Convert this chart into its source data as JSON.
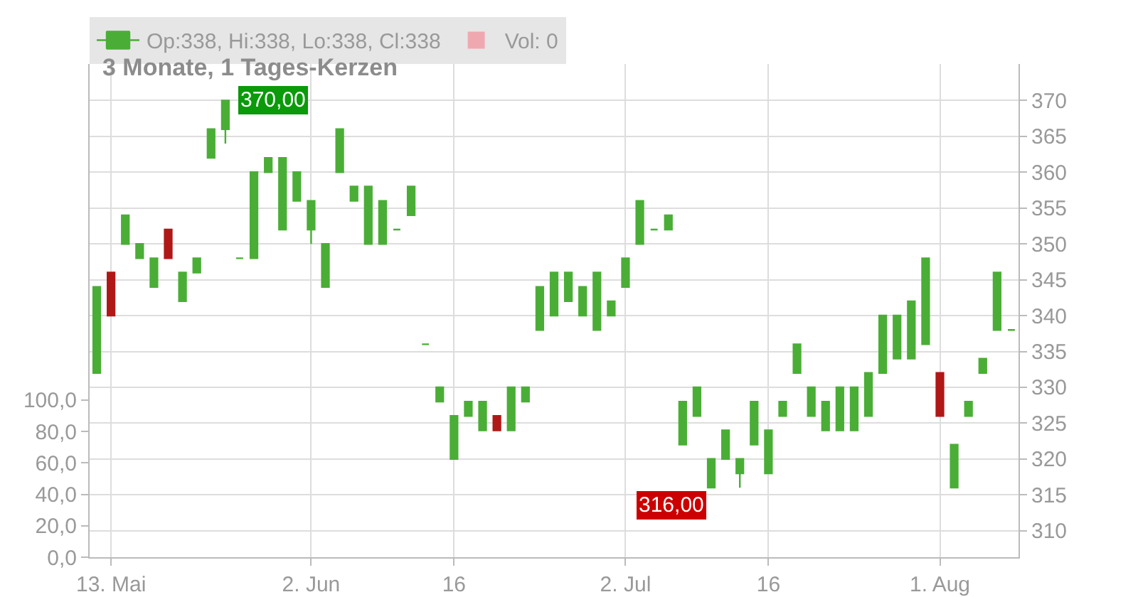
{
  "chart_data": {
    "type": "candlestick",
    "title": "3 Monate, 1 Tages-Kerzen",
    "categories": [
      null,
      "13. Mai",
      null,
      null,
      null,
      null,
      null,
      null,
      null,
      null,
      null,
      null,
      null,
      null,
      null,
      "2. Jun",
      null,
      null,
      null,
      null,
      null,
      null,
      null,
      null,
      null,
      "16",
      null,
      null,
      null,
      null,
      null,
      null,
      null,
      null,
      null,
      null,
      null,
      "2. Jul",
      null,
      null,
      null,
      null,
      null,
      null,
      null,
      null,
      null,
      "16",
      null,
      null,
      null,
      null,
      null,
      null,
      null,
      null,
      null,
      null,
      null,
      "1. Aug",
      null,
      null,
      null,
      null,
      null
    ],
    "series": [
      {
        "name": "Op:338, Hi:338, Lo:338, Cl:338",
        "color": "#4aae36",
        "ohlc": [
          [
            332,
            344,
            332,
            344
          ],
          [
            346,
            346,
            340,
            340
          ],
          [
            350,
            354,
            350,
            354
          ],
          [
            348,
            350,
            348,
            350
          ],
          [
            344,
            348,
            344,
            348
          ],
          [
            352,
            352,
            348,
            348
          ],
          [
            342,
            346,
            342,
            346
          ],
          [
            346,
            348,
            346,
            348
          ],
          [
            362,
            366,
            362,
            366
          ],
          [
            366,
            370,
            364,
            370
          ],
          [
            348,
            348,
            348,
            348
          ],
          [
            348,
            360,
            348,
            360
          ],
          [
            360,
            362,
            360,
            362
          ],
          [
            352,
            362,
            352,
            362
          ],
          [
            356,
            360,
            356,
            360
          ],
          [
            352,
            356,
            350,
            356
          ],
          [
            344,
            350,
            344,
            350
          ],
          [
            360,
            366,
            360,
            366
          ],
          [
            356,
            358,
            356,
            358
          ],
          [
            350,
            358,
            350,
            358
          ],
          [
            350,
            356,
            350,
            356
          ],
          [
            352,
            352,
            352,
            352
          ],
          [
            354,
            358,
            354,
            358
          ],
          [
            336,
            336,
            336,
            336
          ],
          [
            328,
            330,
            328,
            330
          ],
          [
            320,
            326,
            320,
            326
          ],
          [
            326,
            328,
            326,
            328
          ],
          [
            324,
            328,
            324,
            328
          ],
          [
            326,
            326,
            324,
            324
          ],
          [
            324,
            330,
            324,
            330
          ],
          [
            328,
            330,
            328,
            330
          ],
          [
            338,
            344,
            338,
            344
          ],
          [
            340,
            346,
            340,
            346
          ],
          [
            342,
            346,
            342,
            346
          ],
          [
            340,
            344,
            340,
            344
          ],
          [
            338,
            346,
            338,
            346
          ],
          [
            340,
            342,
            340,
            342
          ],
          [
            344,
            348,
            344,
            348
          ],
          [
            350,
            356,
            350,
            356
          ],
          [
            352,
            352,
            352,
            352
          ],
          [
            352,
            354,
            352,
            354
          ],
          [
            322,
            328,
            322,
            328
          ],
          [
            326,
            330,
            326,
            330
          ],
          [
            316,
            320,
            316,
            320
          ],
          [
            320,
            324,
            320,
            324
          ],
          [
            318,
            320,
            316,
            320
          ],
          [
            322,
            328,
            322,
            328
          ],
          [
            318,
            324,
            318,
            324
          ],
          [
            326,
            328,
            326,
            328
          ],
          [
            332,
            336,
            332,
            336
          ],
          [
            326,
            330,
            326,
            330
          ],
          [
            324,
            328,
            324,
            328
          ],
          [
            324,
            330,
            324,
            330
          ],
          [
            324,
            330,
            324,
            330
          ],
          [
            326,
            332,
            326,
            332
          ],
          [
            332,
            340,
            332,
            340
          ],
          [
            334,
            340,
            334,
            340
          ],
          [
            334,
            342,
            334,
            342
          ],
          [
            336,
            348,
            336,
            348
          ],
          [
            332,
            332,
            326,
            326
          ],
          [
            316,
            322,
            316,
            322
          ],
          [
            326,
            328,
            326,
            328
          ],
          [
            332,
            334,
            332,
            334
          ],
          [
            338,
            346,
            338,
            346
          ],
          [
            338,
            338,
            338,
            338
          ]
        ],
        "colors": [
          "#4aae36",
          "#b01818",
          "#4aae36",
          "#4aae36",
          "#4aae36",
          "#b01818",
          "#4aae36",
          "#4aae36",
          "#4aae36",
          "#4aae36",
          "#4aae36",
          "#4aae36",
          "#4aae36",
          "#4aae36",
          "#4aae36",
          "#4aae36",
          "#4aae36",
          "#4aae36",
          "#4aae36",
          "#4aae36",
          "#4aae36",
          "#4aae36",
          "#4aae36",
          "#4aae36",
          "#4aae36",
          "#4aae36",
          "#4aae36",
          "#4aae36",
          "#b01818",
          "#4aae36",
          "#4aae36",
          "#4aae36",
          "#4aae36",
          "#4aae36",
          "#4aae36",
          "#4aae36",
          "#4aae36",
          "#4aae36",
          "#4aae36",
          "#4aae36",
          "#4aae36",
          "#4aae36",
          "#4aae36",
          "#4aae36",
          "#4aae36",
          "#4aae36",
          "#4aae36",
          "#4aae36",
          "#4aae36",
          "#4aae36",
          "#4aae36",
          "#4aae36",
          "#4aae36",
          "#4aae36",
          "#4aae36",
          "#4aae36",
          "#4aae36",
          "#4aae36",
          "#4aae36",
          "#b01818",
          "#4aae36",
          "#4aae36",
          "#4aae36",
          "#4aae36",
          "#4aae36"
        ]
      },
      {
        "type": "bar",
        "name": "Vol: 0",
        "color": "#f0a8b0",
        "axis": "y2",
        "values": [
          0,
          0,
          0,
          0,
          0,
          0,
          0,
          0,
          0,
          0,
          0,
          0,
          0,
          0,
          0,
          0,
          0,
          0,
          0,
          0,
          0,
          0,
          0,
          0,
          0,
          0,
          0,
          0,
          0,
          0,
          0,
          0,
          0,
          0,
          0,
          0,
          0,
          0,
          0,
          0,
          0,
          0,
          0,
          0,
          0,
          0,
          0,
          0,
          0,
          0,
          0,
          0,
          0,
          0,
          0,
          0,
          0,
          0,
          0,
          0,
          0,
          0,
          0,
          0,
          0
        ]
      }
    ],
    "ylim": [
      306.3,
      375.1
    ],
    "yticks": [
      310,
      315,
      320,
      325,
      330,
      335,
      340,
      345,
      350,
      355,
      360,
      365,
      370
    ],
    "y2lim": [
      0,
      314
    ],
    "y2ticks": [
      {
        "value": 0,
        "label": "0,0"
      },
      {
        "value": 20,
        "label": "20,0"
      },
      {
        "value": 40,
        "label": "40,0"
      },
      {
        "value": 60,
        "label": "60,0"
      },
      {
        "value": 80,
        "label": "80,0"
      },
      {
        "value": 100,
        "label": "100,0"
      }
    ],
    "annotations": [
      "370,00",
      "316,00"
    ],
    "grid": true,
    "legend": "top left"
  }
}
